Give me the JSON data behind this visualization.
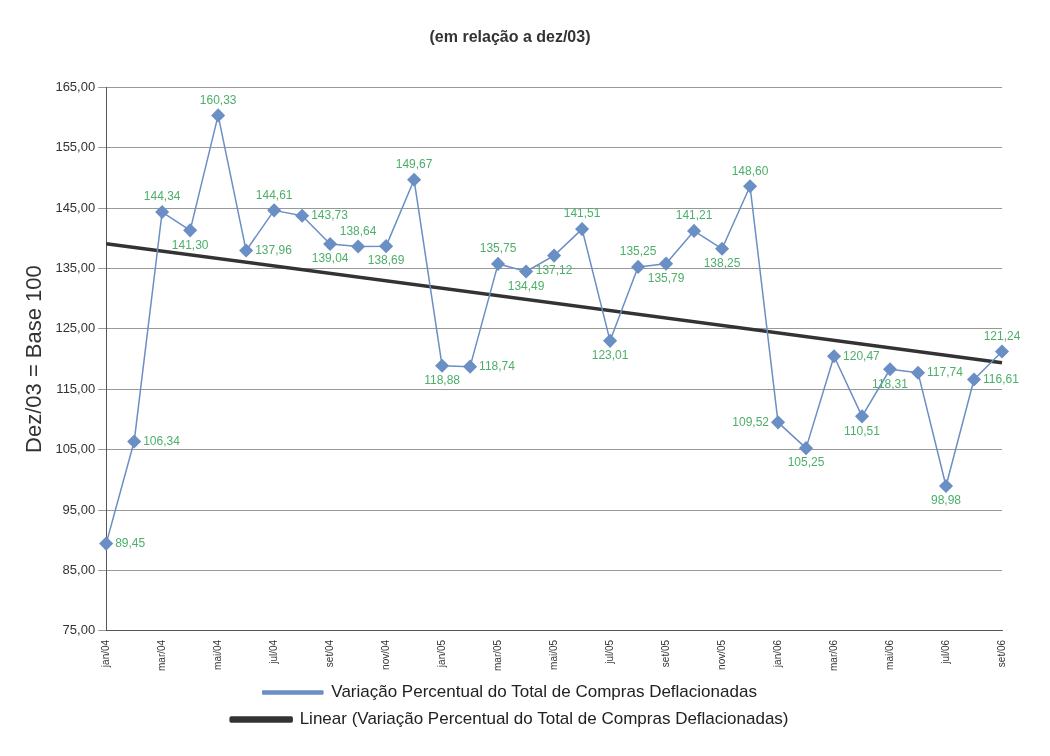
{
  "chart_data": {
    "type": "line",
    "title": "(em relação a dez/03)",
    "ylabel": "Dez/03 = Base 100",
    "categories": [
      "jan/04",
      null,
      "mar/04",
      null,
      "mai/04",
      null,
      "jul/04",
      null,
      "set/04",
      null,
      "nov/04",
      null,
      "jan/05",
      null,
      "mar/05",
      null,
      "mai/05",
      null,
      "jul/05",
      null,
      "set/05",
      null,
      "nov/05",
      null,
      "jan/06",
      null,
      "mar/06",
      null,
      "mai/06",
      null,
      "jul/06",
      null,
      "set/06"
    ],
    "series": [
      {
        "name": "Variação Percentual do Total de Compras Deflacionadas",
        "color": "#6a8fc4",
        "marker": "diamond",
        "values": [
          89.45,
          106.34,
          144.34,
          141.3,
          160.33,
          137.96,
          144.61,
          143.73,
          139.04,
          138.64,
          138.69,
          149.67,
          118.88,
          118.74,
          135.75,
          134.49,
          137.12,
          141.51,
          123.01,
          135.25,
          135.79,
          141.21,
          138.25,
          148.6,
          109.52,
          105.25,
          120.47,
          110.51,
          118.31,
          117.74,
          98.98,
          116.61,
          121.24
        ],
        "value_labels": [
          "89,45",
          "106,34",
          "144,34",
          "141,30",
          "160,33",
          "137,96",
          "144,61",
          "143,73",
          "139,04",
          "138,64",
          "138,69",
          "149,67",
          "118,88",
          "118,74",
          "135,75",
          "134,49",
          "137,12",
          "141,51",
          "123,01",
          "135,25",
          "135,79",
          "141,21",
          "138,25",
          "148,60",
          "109,52",
          "105,25",
          "120,47",
          "110,51",
          "118,31",
          "117,74",
          "98,98",
          "116,61",
          "121,24"
        ]
      },
      {
        "name": "Linear (Variação Percentual do Total de Compras Deflacionadas)",
        "type": "line",
        "color": "#333333",
        "marker": "none",
        "values": [
          139.1,
          null,
          null,
          null,
          null,
          null,
          null,
          null,
          null,
          null,
          null,
          null,
          null,
          null,
          null,
          null,
          null,
          null,
          null,
          null,
          null,
          null,
          null,
          null,
          null,
          null,
          null,
          null,
          null,
          null,
          null,
          null,
          119.4
        ]
      }
    ],
    "ylim": [
      75,
      165
    ],
    "yticks": [
      {
        "value": 75,
        "label": "75,00"
      },
      {
        "value": 85,
        "label": "85,00"
      },
      {
        "value": 95,
        "label": "95,00"
      },
      {
        "value": 105,
        "label": "105,00"
      },
      {
        "value": 115,
        "label": "115,00"
      },
      {
        "value": 125,
        "label": "125,00"
      },
      {
        "value": 135,
        "label": "135,00"
      },
      {
        "value": 145,
        "label": "145,00"
      },
      {
        "value": 155,
        "label": "155,00"
      },
      {
        "value": 165,
        "label": "165,00"
      }
    ],
    "grid": "y",
    "legend": "bottom",
    "line_style": "solid"
  }
}
